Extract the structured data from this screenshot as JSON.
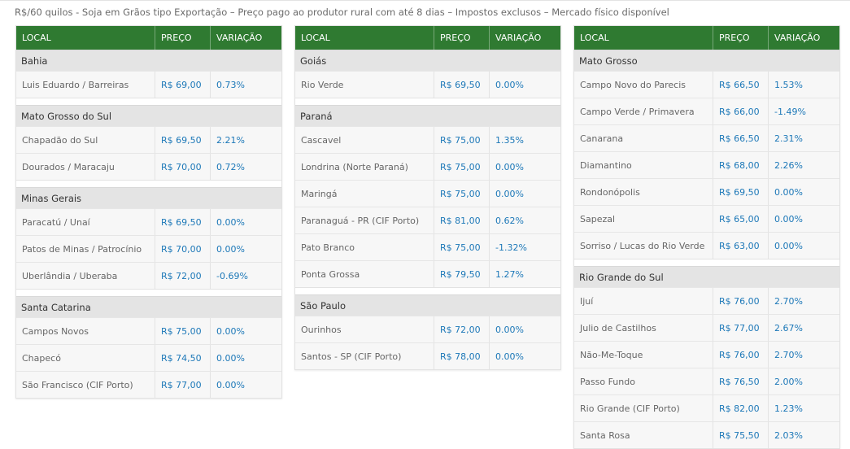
{
  "caption": "R$/60 quilos - Soja em Grãos tipo Exportação – Preço pago ao produtor rural com até 8 dias – Impostos exclusos – Mercado físico disponível",
  "headers": {
    "local": "LOCAL",
    "price": "PREÇO",
    "change": "VARIAÇÃO"
  },
  "columns": [
    {
      "groups": [
        {
          "name": "Bahia",
          "rows": [
            {
              "local": "Luis Eduardo / Barreiras",
              "price": "R$ 69,00",
              "change": "0.73%"
            }
          ]
        },
        {
          "name": "Mato Grosso do Sul",
          "rows": [
            {
              "local": "Chapadão do Sul",
              "price": "R$ 69,50",
              "change": "2.21%"
            },
            {
              "local": "Dourados / Maracaju",
              "price": "R$ 70,00",
              "change": "0.72%"
            }
          ]
        },
        {
          "name": "Minas Gerais",
          "rows": [
            {
              "local": "Paracatú / Unaí",
              "price": "R$ 69,50",
              "change": "0.00%"
            },
            {
              "local": "Patos de Minas / Patrocínio",
              "price": "R$ 70,00",
              "change": "0.00%"
            },
            {
              "local": "Uberlândia / Uberaba",
              "price": "R$ 72,00",
              "change": "-0.69%"
            }
          ]
        },
        {
          "name": "Santa Catarina",
          "rows": [
            {
              "local": "Campos Novos",
              "price": "R$ 75,00",
              "change": "0.00%"
            },
            {
              "local": "Chapecó",
              "price": "R$ 74,50",
              "change": "0.00%"
            },
            {
              "local": "São Francisco (CIF Porto)",
              "price": "R$ 77,00",
              "change": "0.00%"
            }
          ]
        }
      ]
    },
    {
      "groups": [
        {
          "name": "Goiás",
          "rows": [
            {
              "local": "Rio Verde",
              "price": "R$ 69,50",
              "change": "0.00%"
            }
          ]
        },
        {
          "name": "Paraná",
          "rows": [
            {
              "local": "Cascavel",
              "price": "R$ 75,00",
              "change": "1.35%"
            },
            {
              "local": "Londrina (Norte Paraná)",
              "price": "R$ 75,00",
              "change": "0.00%"
            },
            {
              "local": "Maringá",
              "price": "R$ 75,00",
              "change": "0.00%"
            },
            {
              "local": "Paranaguá - PR (CIF Porto)",
              "price": "R$ 81,00",
              "change": "0.62%"
            },
            {
              "local": "Pato Branco",
              "price": "R$ 75,00",
              "change": "-1.32%"
            },
            {
              "local": "Ponta Grossa",
              "price": "R$ 79,50",
              "change": "1.27%"
            }
          ]
        },
        {
          "name": "São Paulo",
          "rows": [
            {
              "local": "Ourinhos",
              "price": "R$ 72,00",
              "change": "0.00%"
            },
            {
              "local": "Santos - SP (CIF Porto)",
              "price": "R$ 78,00",
              "change": "0.00%"
            }
          ]
        }
      ]
    },
    {
      "groups": [
        {
          "name": "Mato Grosso",
          "rows": [
            {
              "local": "Campo Novo do Parecis",
              "price": "R$ 66,50",
              "change": "1.53%"
            },
            {
              "local": "Campo Verde / Primavera",
              "price": "R$ 66,00",
              "change": "-1.49%"
            },
            {
              "local": "Canarana",
              "price": "R$ 66,50",
              "change": "2.31%"
            },
            {
              "local": "Diamantino",
              "price": "R$ 68,00",
              "change": "2.26%"
            },
            {
              "local": "Rondonópolis",
              "price": "R$ 69,50",
              "change": "0.00%"
            },
            {
              "local": "Sapezal",
              "price": "R$ 65,00",
              "change": "0.00%"
            },
            {
              "local": "Sorriso / Lucas do Rio Verde",
              "price": "R$ 63,00",
              "change": "0.00%"
            }
          ]
        },
        {
          "name": "Rio Grande do Sul",
          "rows": [
            {
              "local": "Ijuí",
              "price": "R$ 76,00",
              "change": "2.70%"
            },
            {
              "local": "Julio de Castilhos",
              "price": "R$ 77,00",
              "change": "2.67%"
            },
            {
              "local": "Não-Me-Toque",
              "price": "R$ 76,00",
              "change": "2.70%"
            },
            {
              "local": "Passo Fundo",
              "price": "R$ 76,50",
              "change": "2.00%"
            },
            {
              "local": "Rio Grande (CIF Porto)",
              "price": "R$ 82,00",
              "change": "1.23%"
            },
            {
              "local": "Santa Rosa",
              "price": "R$ 75,50",
              "change": "2.03%"
            }
          ]
        }
      ]
    }
  ]
}
